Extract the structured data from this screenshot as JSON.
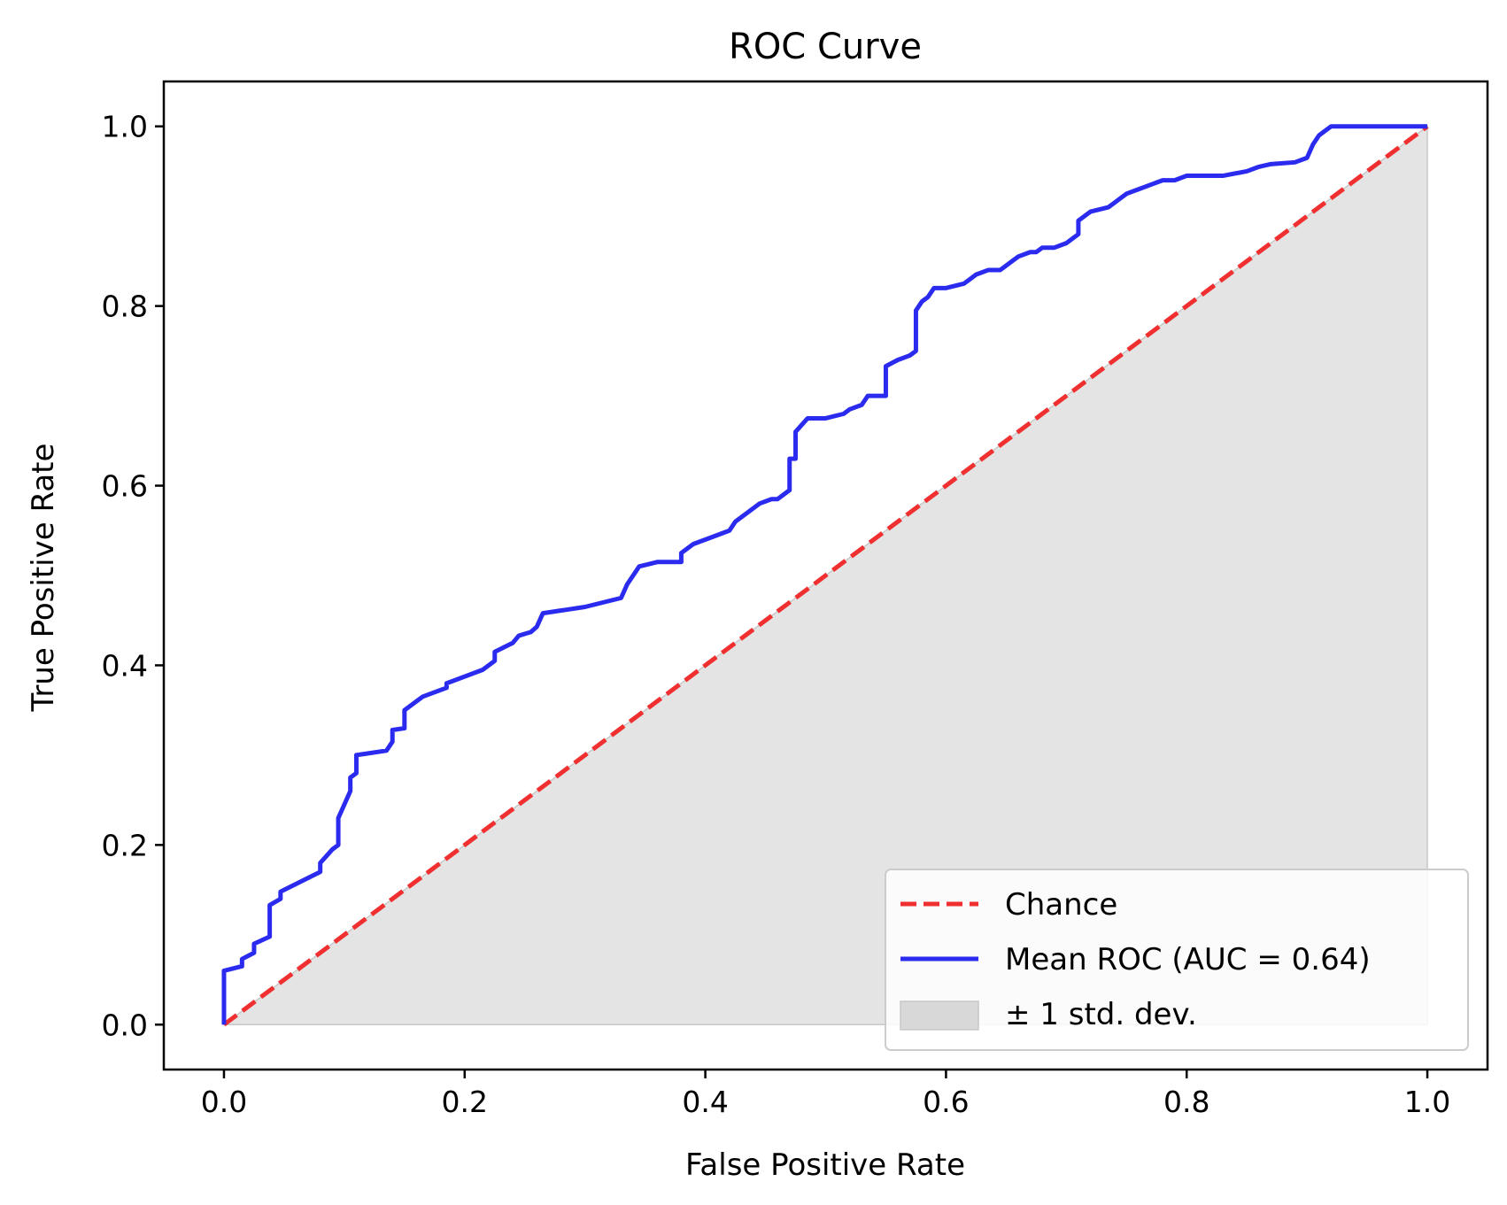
{
  "chart_data": {
    "type": "line",
    "title": "ROC Curve",
    "xlabel": "False Positive Rate",
    "ylabel": "True Positive Rate",
    "xlim": [
      -0.05,
      1.05
    ],
    "ylim": [
      -0.05,
      1.05
    ],
    "grid": false,
    "legend_position": "lower-right",
    "x_ticks": [
      "0.0",
      "0.2",
      "0.4",
      "0.6",
      "0.8",
      "1.0"
    ],
    "y_ticks": [
      "0.0",
      "0.2",
      "0.4",
      "0.6",
      "0.8",
      "1.0"
    ],
    "legend": {
      "chance": "Chance",
      "mean": "Mean ROC (AUC = 0.64)",
      "std": "± 1 std. dev."
    },
    "colors": {
      "chance": "#f03030",
      "mean": "#2b2bf0",
      "band": "#d8d8d8"
    },
    "series": [
      {
        "name": "Chance",
        "style": "dashed",
        "x": [
          0.0,
          1.0
        ],
        "y": [
          0.0,
          1.0
        ]
      },
      {
        "name": "Mean ROC (AUC = 0.64)",
        "style": "solid",
        "x": [
          0.0,
          0.0,
          0.015,
          0.015,
          0.025,
          0.025,
          0.038,
          0.038,
          0.047,
          0.047,
          0.08,
          0.08,
          0.09,
          0.095,
          0.095,
          0.1,
          0.105,
          0.105,
          0.11,
          0.11,
          0.135,
          0.14,
          0.14,
          0.15,
          0.15,
          0.165,
          0.185,
          0.185,
          0.215,
          0.225,
          0.225,
          0.24,
          0.245,
          0.255,
          0.26,
          0.265,
          0.3,
          0.33,
          0.335,
          0.34,
          0.345,
          0.36,
          0.38,
          0.38,
          0.39,
          0.41,
          0.42,
          0.425,
          0.435,
          0.445,
          0.455,
          0.46,
          0.47,
          0.47,
          0.475,
          0.475,
          0.485,
          0.5,
          0.515,
          0.52,
          0.53,
          0.535,
          0.55,
          0.55,
          0.56,
          0.57,
          0.575,
          0.575,
          0.58,
          0.585,
          0.59,
          0.6,
          0.6,
          0.615,
          0.62,
          0.625,
          0.635,
          0.635,
          0.645,
          0.65,
          0.66,
          0.67,
          0.675,
          0.68,
          0.69,
          0.7,
          0.71,
          0.71,
          0.72,
          0.735,
          0.74,
          0.745,
          0.75,
          0.76,
          0.77,
          0.78,
          0.79,
          0.8,
          0.83,
          0.85,
          0.86,
          0.87,
          0.89,
          0.9,
          0.905,
          0.91,
          0.92,
          0.96,
          0.97,
          1.0
        ],
        "y": [
          0.0,
          0.06,
          0.065,
          0.073,
          0.08,
          0.09,
          0.098,
          0.133,
          0.14,
          0.148,
          0.17,
          0.18,
          0.195,
          0.2,
          0.23,
          0.245,
          0.26,
          0.275,
          0.28,
          0.3,
          0.305,
          0.315,
          0.328,
          0.33,
          0.35,
          0.365,
          0.375,
          0.38,
          0.395,
          0.405,
          0.415,
          0.425,
          0.433,
          0.437,
          0.443,
          0.458,
          0.465,
          0.475,
          0.49,
          0.5,
          0.51,
          0.515,
          0.515,
          0.525,
          0.535,
          0.545,
          0.55,
          0.56,
          0.57,
          0.58,
          0.585,
          0.585,
          0.595,
          0.63,
          0.63,
          0.66,
          0.675,
          0.675,
          0.68,
          0.685,
          0.69,
          0.7,
          0.7,
          0.733,
          0.74,
          0.745,
          0.75,
          0.795,
          0.805,
          0.81,
          0.82,
          0.82,
          0.82,
          0.825,
          0.83,
          0.835,
          0.84,
          0.84,
          0.84,
          0.845,
          0.855,
          0.86,
          0.86,
          0.865,
          0.865,
          0.87,
          0.88,
          0.895,
          0.905,
          0.91,
          0.915,
          0.92,
          0.925,
          0.93,
          0.935,
          0.94,
          0.94,
          0.945,
          0.945,
          0.95,
          0.955,
          0.958,
          0.96,
          0.965,
          0.98,
          0.99,
          1.0,
          1.0,
          1.0,
          1.0
        ]
      }
    ],
    "std_band": {
      "name": "± 1 std. dev.",
      "x": [
        0.0,
        1.0
      ],
      "lower": [
        0.0,
        0.0
      ],
      "upper": [
        0.0,
        1.0
      ]
    }
  }
}
